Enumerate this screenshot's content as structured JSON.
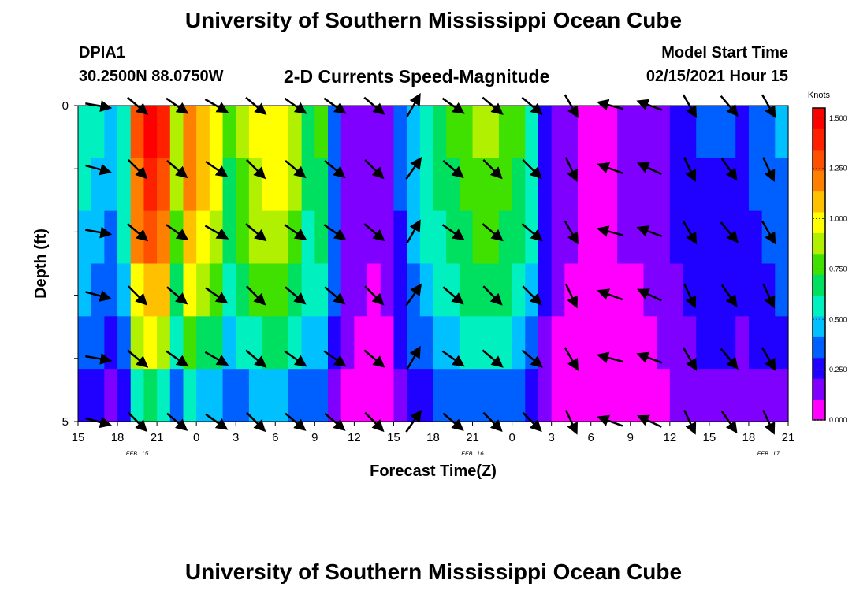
{
  "header": {
    "title": "University of Southern Mississippi Ocean Cube",
    "footer_title": "University of Southern Mississippi Ocean Cube",
    "station": "DPIA1",
    "location": "30.2500N 88.0750W",
    "subtitle": "2-D Currents Speed-Magnitude",
    "start_label": "Model Start Time",
    "start_value": "02/15/2021 Hour 15"
  },
  "chart_data": {
    "type": "heatmap",
    "title": "2-D Currents Speed-Magnitude",
    "xlabel": "Forecast Time(Z)",
    "ylabel": "Depth (ft)",
    "x_ticks": [
      "15",
      "18",
      "21",
      "0",
      "3",
      "6",
      "9",
      "12",
      "15",
      "18",
      "21",
      "0",
      "3",
      "6",
      "9",
      "12",
      "15",
      "18",
      "21"
    ],
    "date_labels": [
      {
        "label": "FEB 15",
        "after_tick": 1.5
      },
      {
        "label": "FEB 16",
        "after_tick": 10
      },
      {
        "label": "FEB 17",
        "after_tick": 17.5
      }
    ],
    "y_ticks": [
      "0",
      "5"
    ],
    "ylim": [
      0,
      5
    ],
    "y_reversed": true,
    "colorbar": {
      "unit": "Knots",
      "range": [
        0,
        1.55
      ],
      "ticks": [
        "0.000",
        "0.250",
        "0.500",
        "0.750",
        "1.000",
        "1.250",
        "1.500"
      ],
      "colors": [
        "#ff00ff",
        "#8000ff",
        "#2000ff",
        "#0060ff",
        "#00c0ff",
        "#00f0c0",
        "#00e060",
        "#40e000",
        "#b0f000",
        "#ffff00",
        "#ffc000",
        "#ff8000",
        "#ff5000",
        "#ff2000",
        "#ff0000"
      ]
    },
    "hours": 54,
    "depth_levels": 5,
    "speed_profile": [
      0.55,
      0.52,
      0.45,
      0.6,
      1.3,
      1.45,
      1.35,
      0.9,
      1.2,
      1.1,
      1.0,
      0.75,
      0.85,
      0.95,
      1.0,
      1.0,
      0.9,
      0.7,
      0.75,
      0.4,
      0.2,
      0.15,
      0.12,
      0.15,
      0.35,
      0.5,
      0.6,
      0.7,
      0.75,
      0.8,
      0.85,
      0.85,
      0.8,
      0.75,
      0.6,
      0.3,
      0.15,
      0.12,
      0.1,
      0.1,
      0.1,
      0.12,
      0.12,
      0.15,
      0.2,
      0.25,
      0.3,
      0.32,
      0.32,
      0.32,
      0.3,
      0.35,
      0.38,
      0.42
    ],
    "depth_factor": [
      1.0,
      0.95,
      0.88,
      0.78,
      0.65,
      0.45
    ],
    "arrows": {
      "hours_at": [
        3,
        6,
        9,
        12,
        15,
        18,
        21,
        24,
        27,
        30,
        33,
        36,
        39,
        42,
        45,
        48,
        51,
        54
      ],
      "angles_deg": [
        10,
        40,
        35,
        30,
        40,
        35,
        35,
        40,
        -60,
        35,
        40,
        40,
        60,
        195,
        200,
        60,
        50,
        60
      ],
      "depth_rows": [
        0,
        1,
        2,
        3,
        4,
        5
      ]
    }
  }
}
